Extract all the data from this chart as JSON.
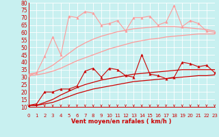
{
  "xlabel": "Vent moyen/en rafales ( km/h )",
  "xlim": [
    0,
    23
  ],
  "ylim": [
    10,
    80
  ],
  "yticks": [
    10,
    15,
    20,
    25,
    30,
    35,
    40,
    45,
    50,
    55,
    60,
    65,
    70,
    75,
    80
  ],
  "xticks": [
    0,
    1,
    2,
    3,
    4,
    5,
    6,
    7,
    8,
    9,
    10,
    11,
    12,
    13,
    14,
    15,
    16,
    17,
    18,
    19,
    20,
    21,
    22,
    23
  ],
  "bg_color": "#c8f0f0",
  "grid_color": "#aadddd",
  "dark_red": "#cc0000",
  "light_red": "#ff9999",
  "x_data": [
    0,
    1,
    2,
    3,
    4,
    5,
    6,
    7,
    8,
    9,
    10,
    11,
    12,
    13,
    14,
    15,
    16,
    17,
    18,
    19,
    20,
    21,
    22,
    23
  ],
  "reg_light_lo": [
    31,
    31.5,
    32.5,
    34,
    36,
    38.5,
    41,
    43,
    45,
    47,
    49,
    50.5,
    52,
    53.5,
    54.5,
    55.5,
    56,
    57,
    57.5,
    58,
    58.5,
    59,
    59,
    59
  ],
  "reg_light_hi": [
    32,
    33,
    35,
    38,
    42,
    46,
    50,
    53,
    55.5,
    57.5,
    59,
    60.5,
    61.5,
    62.5,
    63,
    63.5,
    64,
    64,
    64,
    63.5,
    63,
    62.5,
    62,
    61
  ],
  "reg_dark_lo": [
    11,
    11,
    12,
    13,
    15,
    17,
    19,
    20.5,
    22,
    23,
    24,
    25,
    26,
    27,
    27.5,
    28,
    28.5,
    29,
    29.5,
    30,
    30.5,
    31,
    31,
    31.5
  ],
  "reg_dark_hi": [
    11,
    11,
    13,
    15,
    18,
    20.5,
    23,
    25,
    26.5,
    28,
    29,
    30,
    31,
    32,
    32.5,
    33,
    33.5,
    34,
    34.5,
    35,
    35,
    35,
    35,
    35
  ],
  "jagged_light": [
    31,
    33,
    44,
    57,
    45,
    71,
    70,
    74,
    73,
    65,
    66,
    68,
    61,
    70,
    70,
    71,
    65,
    67,
    78,
    64,
    68,
    66,
    61,
    60
  ],
  "jagged_dark": [
    11,
    12,
    20,
    20,
    22,
    22,
    24,
    34,
    36,
    30,
    36,
    35,
    31,
    30,
    45,
    32,
    31,
    29,
    30,
    40,
    39,
    37,
    38,
    33
  ]
}
